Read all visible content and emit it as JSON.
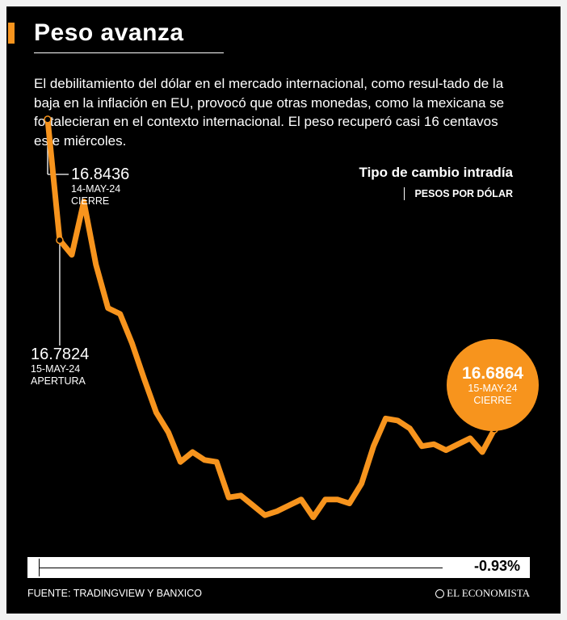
{
  "header": {
    "title": "Peso avanza",
    "description": "El debilitamiento del dólar en el mercado internacional, como resul-tado de la baja en la inflación en EU, provocó que otras monedas, como la mexicana se fortalecieran en el contexto internacional. El peso recuperó casi 16 centavos este miércoles."
  },
  "legend": {
    "title": "Tipo de cambio intradía",
    "unit": "PESOS POR DÓLAR"
  },
  "annotations": {
    "prev_close": {
      "value": "16.8436",
      "date": "14-MAY-24",
      "label": "CIERRE"
    },
    "open": {
      "value": "16.7824",
      "date": "15-MAY-24",
      "label": "APERTURA"
    },
    "close": {
      "value": "16.6864",
      "date": "15-MAY-24",
      "label": "CIERRE"
    }
  },
  "change": {
    "label": "-0.93%",
    "value": -0.93
  },
  "footer": {
    "source": "FUENTE: TRADINGVIEW Y BANXICO",
    "brand": "EL ECONOMISTA"
  },
  "colors": {
    "line": "#f7941d",
    "background": "#000000",
    "text": "#ffffff"
  },
  "chart_data": {
    "type": "line",
    "title": "Tipo de cambio intradía",
    "ylabel": "PESOS POR DÓLAR",
    "ylim": [
      16.63,
      16.855
    ],
    "grid": false,
    "series": [
      {
        "values": [
          16.8436,
          16.7824,
          16.775,
          16.802,
          16.77,
          16.748,
          16.745,
          16.73,
          16.712,
          16.695,
          16.685,
          16.67,
          16.675,
          16.671,
          16.67,
          16.652,
          16.653,
          16.648,
          16.643,
          16.645,
          16.648,
          16.651,
          16.642,
          16.651,
          16.651,
          16.649,
          16.659,
          16.678,
          16.692,
          16.691,
          16.687,
          16.678,
          16.679,
          16.676,
          16.679,
          16.682,
          16.675,
          16.6864
        ]
      }
    ]
  }
}
